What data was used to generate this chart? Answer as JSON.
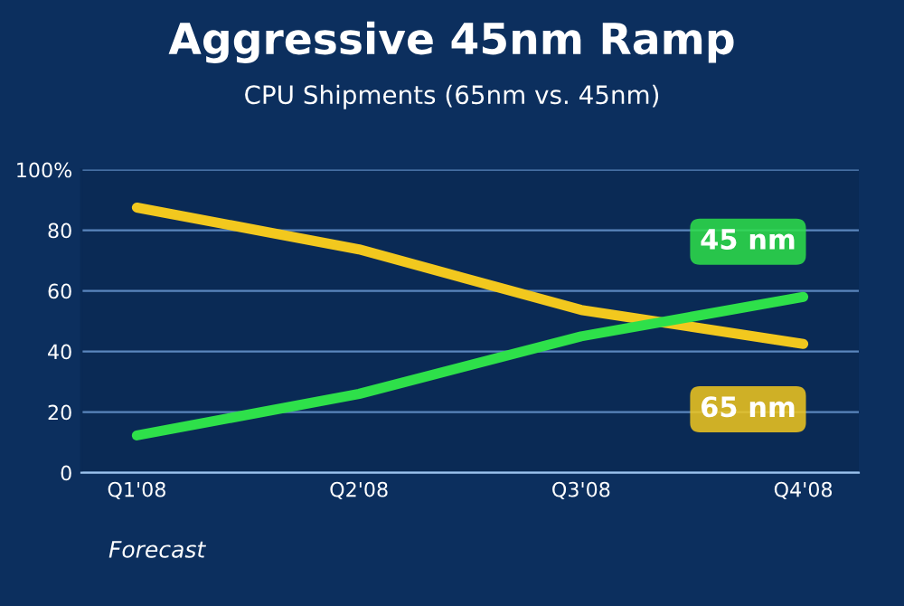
{
  "chart_data": {
    "type": "line",
    "title": "Aggressive 45nm Ramp",
    "subtitle": "CPU Shipments (65nm vs. 45nm)",
    "categories": [
      "Q1'08",
      "Q2'08",
      "Q3'08",
      "Q4'08"
    ],
    "series": [
      {
        "name": "65 nm",
        "color": "#f2c81e",
        "values": [
          87.5,
          73.7,
          53.7,
          42.5
        ]
      },
      {
        "name": "45 nm",
        "color": "#2ee04a",
        "values": [
          12.3,
          26,
          45,
          58
        ]
      }
    ],
    "ylim": [
      0,
      100
    ],
    "yticks": [
      0,
      20,
      40,
      60,
      80,
      {
        "value": 100,
        "label": "100%"
      }
    ],
    "grid": "y",
    "legend": false,
    "marker": "none",
    "line_style": "solid",
    "annotations": [
      "Forecast"
    ]
  }
}
